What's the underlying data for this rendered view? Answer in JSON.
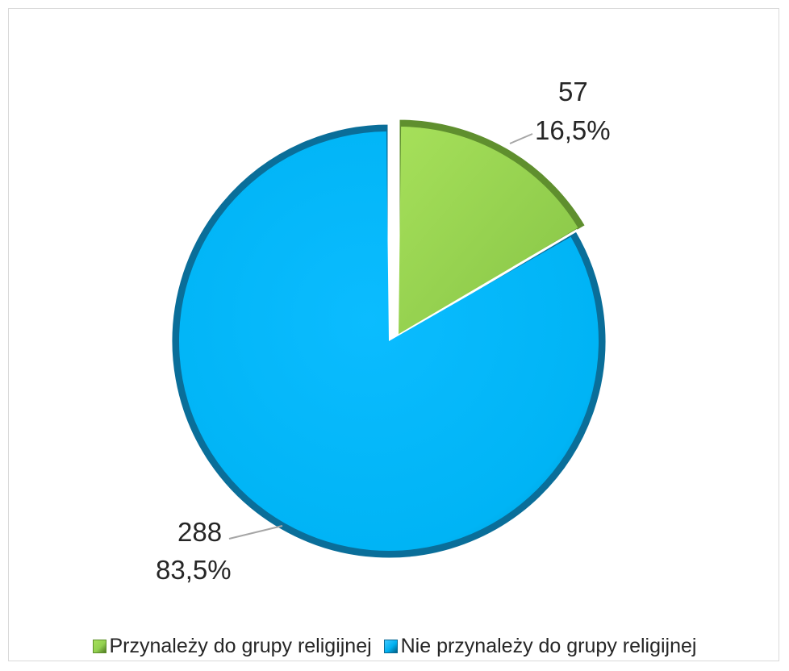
{
  "chart_data": {
    "type": "pie",
    "title": "",
    "slices": [
      {
        "label": "Przynależy do grupy religijnej",
        "value": 57,
        "percent": "16,5%",
        "color": "#92D050"
      },
      {
        "label": "Nie przynależy do grupy religijnej",
        "value": 288,
        "percent": "83,5%",
        "color": "#00B0F0"
      }
    ],
    "legend_position": "bottom"
  },
  "labels": {
    "slice0_value": "57",
    "slice0_percent": "16,5%",
    "slice1_value": "288",
    "slice1_percent": "83,5%"
  },
  "legend": {
    "item0": "Przynależy do grupy religijnej",
    "item1": "Nie przynależy do grupy religijnej"
  }
}
